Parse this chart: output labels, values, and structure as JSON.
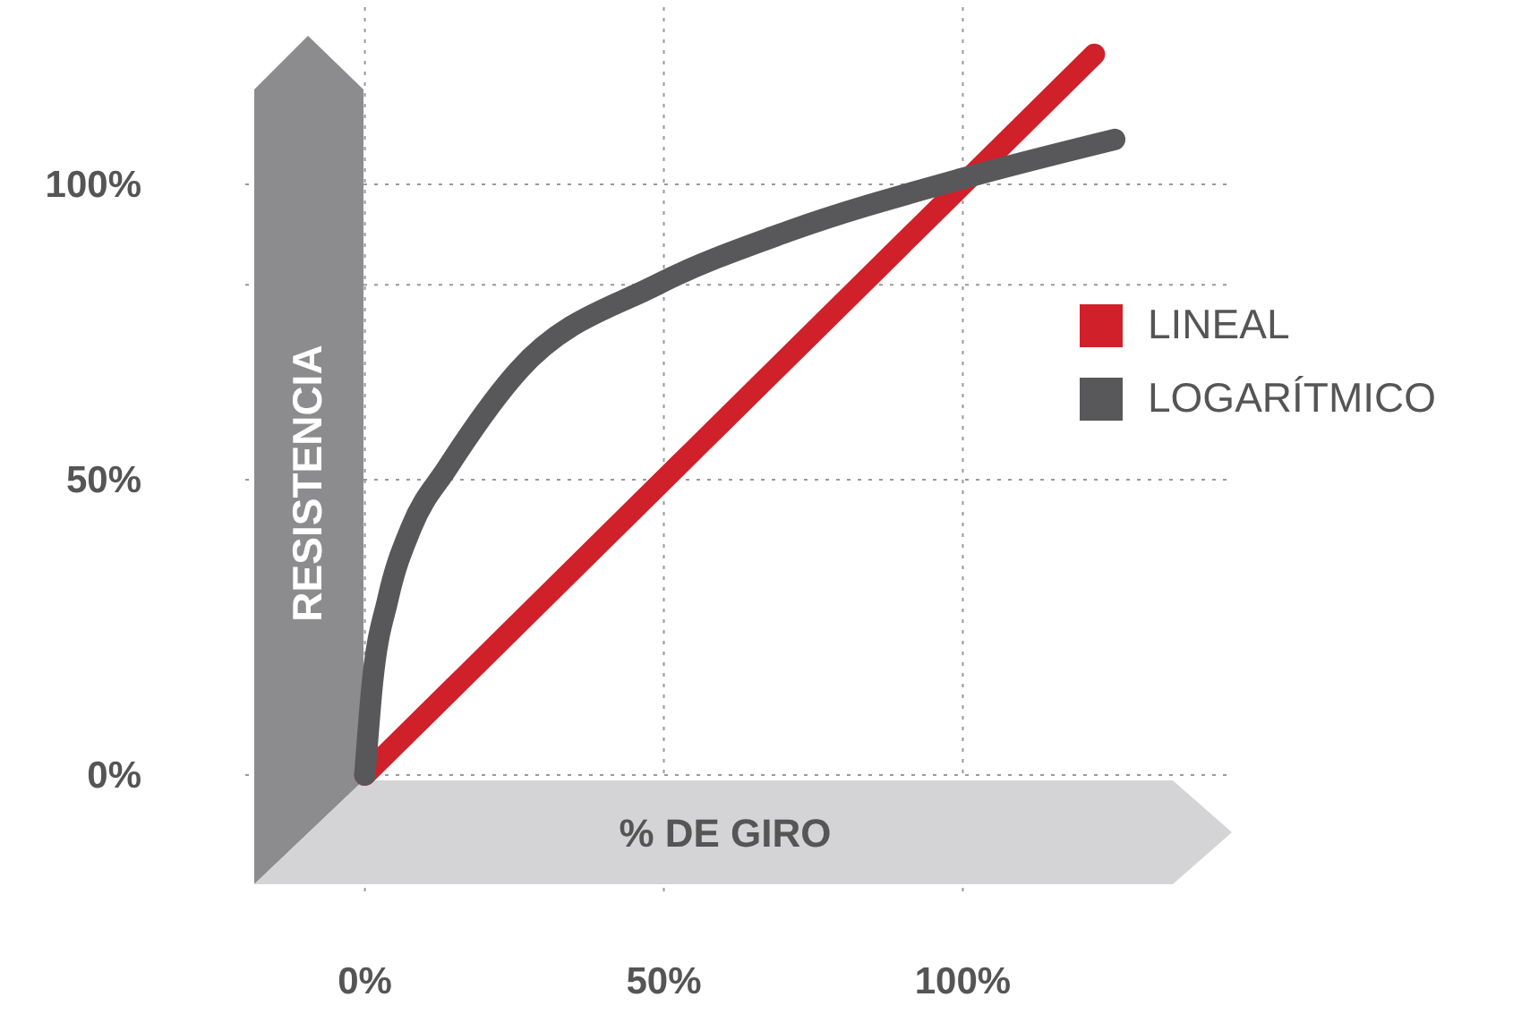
{
  "chart_data": {
    "type": "line",
    "xlabel": "% DE GIRO",
    "ylabel": "RESISTENCIA",
    "xlim": [
      -20,
      145
    ],
    "ylim": [
      -20,
      130
    ],
    "xticks": [
      {
        "value": 0,
        "label": "0%"
      },
      {
        "value": 50,
        "label": "50%"
      },
      {
        "value": 100,
        "label": "100%"
      }
    ],
    "yticks": [
      {
        "value": 0,
        "label": "0%"
      },
      {
        "value": 50,
        "label": "50%"
      },
      {
        "value": 83,
        "label": null
      },
      {
        "value": 100,
        "label": "100%"
      }
    ],
    "grid": true,
    "legend": "right",
    "marker": "none",
    "line_style": "solid",
    "series": [
      {
        "name": "LINEAL",
        "color": "#d0202a",
        "x": [
          0,
          122
        ],
        "values": [
          0,
          122
        ]
      },
      {
        "name": "LOGARÍTMICO",
        "color": "#58585a",
        "x": [
          0,
          1.2,
          3.9,
          7.8,
          13.8,
          25.7,
          48.8,
          70.7,
          100,
          125.4
        ],
        "values": [
          0,
          15,
          30,
          42,
          52,
          68.5,
          83,
          92,
          101,
          107.6
        ]
      }
    ]
  }
}
